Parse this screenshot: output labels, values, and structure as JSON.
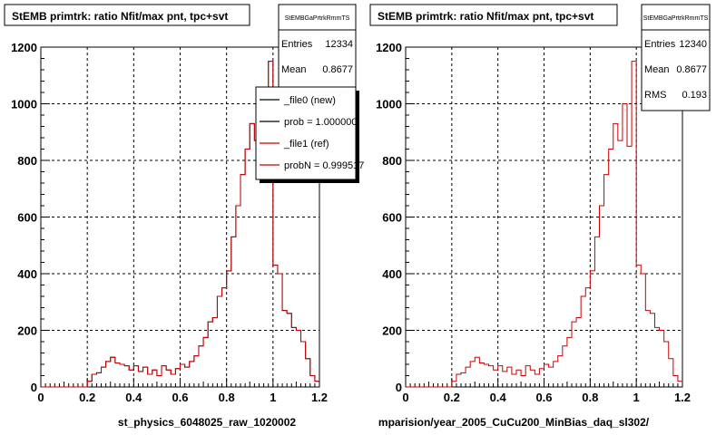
{
  "chart_data": [
    {
      "type": "line",
      "title": "StEMB primtrk: ratio Nfit/max pnt, tpc+svt",
      "xlabel": "st_physics_6048025_raw_1020002",
      "ylabel": "",
      "xlim": [
        0,
        1.2
      ],
      "ylim": [
        0,
        1200
      ],
      "grid": true,
      "x_ticks": [
        "0",
        "0.2",
        "0.4",
        "0.6",
        "0.8",
        "1",
        "1.2"
      ],
      "y_ticks": [
        "0",
        "200",
        "400",
        "600",
        "800",
        "1000",
        "1200"
      ],
      "stats": {
        "name": "StEMBGaPrtrkRmmTS",
        "rows": [
          {
            "label": "Entries",
            "value": "12334"
          },
          {
            "label": "Mean",
            "value": "0.8677"
          }
        ]
      },
      "legend": {
        "position": "top-right",
        "entries": [
          {
            "label": "_file0 (new)",
            "color": "#000000"
          },
          {
            "label": "prob = 1.000000",
            "color": "#000000"
          },
          {
            "label": "_file1 (ref)",
            "color": "#cc0000"
          },
          {
            "label": "probN = 0.999517",
            "color": "#cc0000"
          }
        ]
      },
      "series": [
        {
          "color": "#cc0000",
          "overlay": "#000000",
          "x": [
            0.0,
            0.02,
            0.04,
            0.06,
            0.08,
            0.1,
            0.12,
            0.14,
            0.16,
            0.18,
            0.2,
            0.22,
            0.24,
            0.26,
            0.28,
            0.3,
            0.32,
            0.34,
            0.36,
            0.38,
            0.4,
            0.42,
            0.44,
            0.46,
            0.48,
            0.5,
            0.52,
            0.54,
            0.56,
            0.58,
            0.6,
            0.62,
            0.64,
            0.66,
            0.68,
            0.7,
            0.72,
            0.74,
            0.76,
            0.78,
            0.8,
            0.82,
            0.84,
            0.86,
            0.88,
            0.9,
            0.92,
            0.94,
            0.96,
            0.98,
            1.0,
            1.02,
            1.04,
            1.06,
            1.08,
            1.1,
            1.12,
            1.14,
            1.16,
            1.18
          ],
          "values": [
            0,
            0,
            0,
            0,
            0,
            0,
            0,
            0,
            0,
            0,
            20,
            45,
            50,
            70,
            90,
            105,
            85,
            80,
            75,
            60,
            75,
            55,
            70,
            45,
            60,
            40,
            75,
            60,
            45,
            65,
            80,
            70,
            90,
            110,
            145,
            175,
            230,
            245,
            320,
            350,
            410,
            530,
            640,
            750,
            840,
            930,
            870,
            1000,
            850,
            1150,
            430,
            400,
            270,
            260,
            210,
            200,
            160,
            100,
            40,
            20
          ]
        }
      ]
    },
    {
      "type": "line",
      "title": "StEMB primtrk: ratio Nfit/max pnt, tpc+svt",
      "xlabel": "mparision/year_2005_CuCu200_MinBias_daq_sl302/",
      "ylabel": "",
      "xlim": [
        0,
        1.2
      ],
      "ylim": [
        0,
        1200
      ],
      "grid": true,
      "x_ticks": [
        "0",
        "0.2",
        "0.4",
        "0.6",
        "0.8",
        "1",
        "1.2"
      ],
      "y_ticks": [
        "0",
        "200",
        "400",
        "600",
        "800",
        "1000",
        "1200"
      ],
      "stats": {
        "name": "StEMBGaPrtrkRmmTS",
        "rows": [
          {
            "label": "Entries",
            "value": "12340"
          },
          {
            "label": "Mean",
            "value": "0.8677"
          },
          {
            "label": "RMS",
            "value": "0.193"
          }
        ]
      },
      "series": [
        {
          "color": "#cc0000",
          "x": [
            0.0,
            0.02,
            0.04,
            0.06,
            0.08,
            0.1,
            0.12,
            0.14,
            0.16,
            0.18,
            0.2,
            0.22,
            0.24,
            0.26,
            0.28,
            0.3,
            0.32,
            0.34,
            0.36,
            0.38,
            0.4,
            0.42,
            0.44,
            0.46,
            0.48,
            0.5,
            0.52,
            0.54,
            0.56,
            0.58,
            0.6,
            0.62,
            0.64,
            0.66,
            0.68,
            0.7,
            0.72,
            0.74,
            0.76,
            0.78,
            0.8,
            0.82,
            0.84,
            0.86,
            0.88,
            0.9,
            0.92,
            0.94,
            0.96,
            0.98,
            1.0,
            1.02,
            1.04,
            1.06,
            1.08,
            1.1,
            1.12,
            1.14,
            1.16,
            1.18
          ],
          "values": [
            0,
            0,
            0,
            0,
            0,
            0,
            0,
            0,
            0,
            0,
            20,
            45,
            50,
            70,
            90,
            105,
            85,
            80,
            75,
            60,
            75,
            55,
            70,
            45,
            60,
            40,
            75,
            60,
            45,
            65,
            80,
            70,
            90,
            110,
            145,
            175,
            230,
            245,
            320,
            350,
            410,
            530,
            640,
            750,
            840,
            930,
            870,
            1000,
            850,
            1150,
            430,
            400,
            270,
            260,
            210,
            200,
            160,
            100,
            40,
            20
          ]
        }
      ]
    }
  ]
}
